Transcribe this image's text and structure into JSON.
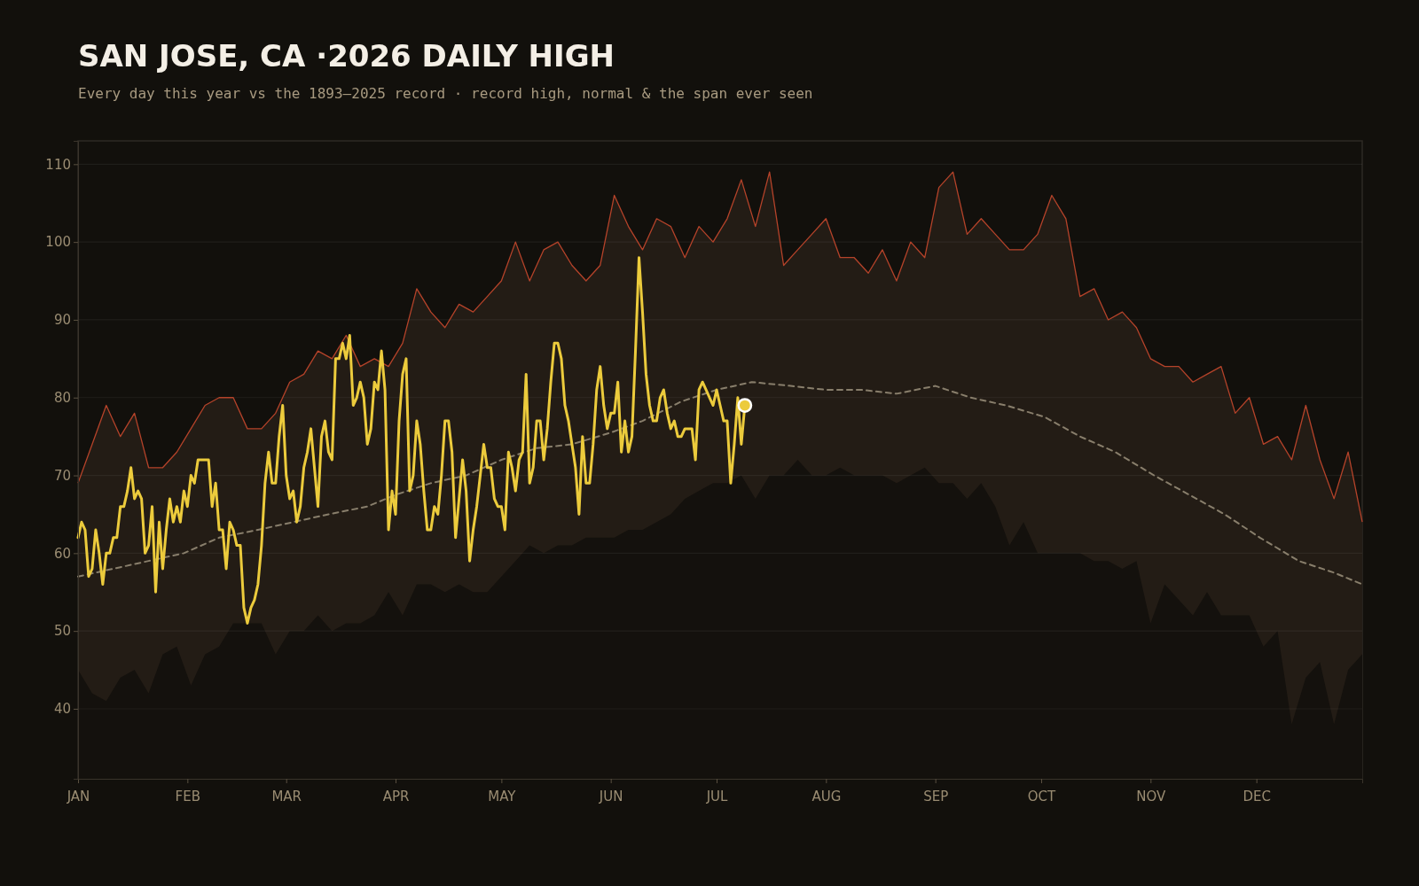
{
  "chart_data": {
    "type": "line",
    "title": "SAN JOSE, CA ·2026 DAILY HIGH",
    "subtitle": "Every day this year vs the 1893–2025 record · record high, normal & the span ever seen",
    "xlim": [
      "2026-01-01",
      "2026-12-31"
    ],
    "ylim": [
      31,
      113
    ],
    "xticks": [
      {
        "value": "2026-01-01",
        "label": "JAN"
      },
      {
        "value": "2026-02-01",
        "label": "FEB"
      },
      {
        "value": "2026-03-01",
        "label": "MAR"
      },
      {
        "value": "2026-04-01",
        "label": "APR"
      },
      {
        "value": "2026-05-01",
        "label": "MAY"
      },
      {
        "value": "2026-06-01",
        "label": "JUN"
      },
      {
        "value": "2026-07-01",
        "label": "JUL"
      },
      {
        "value": "2026-08-01",
        "label": "AUG"
      },
      {
        "value": "2026-09-01",
        "label": "SEP"
      },
      {
        "value": "2026-10-01",
        "label": "OCT"
      },
      {
        "value": "2026-11-01",
        "label": "NOV"
      },
      {
        "value": "2026-12-01",
        "label": "DEC"
      }
    ],
    "yticks": [
      40,
      50,
      60,
      70,
      80,
      90,
      100,
      110
    ],
    "grid": "y",
    "x": [
      "2026-01-01",
      "2026-01-05",
      "2026-01-09",
      "2026-01-13",
      "2026-01-17",
      "2026-01-21",
      "2026-01-25",
      "2026-01-29",
      "2026-02-02",
      "2026-02-06",
      "2026-02-10",
      "2026-02-14",
      "2026-02-18",
      "2026-02-22",
      "2026-02-26",
      "2026-03-02",
      "2026-03-06",
      "2026-03-10",
      "2026-03-14",
      "2026-03-18",
      "2026-03-22",
      "2026-03-26",
      "2026-03-30",
      "2026-04-03",
      "2026-04-07",
      "2026-04-11",
      "2026-04-15",
      "2026-04-19",
      "2026-04-23",
      "2026-04-27",
      "2026-05-01",
      "2026-05-05",
      "2026-05-09",
      "2026-05-13",
      "2026-05-17",
      "2026-05-21",
      "2026-05-25",
      "2026-05-29",
      "2026-06-02",
      "2026-06-06",
      "2026-06-10",
      "2026-06-14",
      "2026-06-18",
      "2026-06-22",
      "2026-06-26",
      "2026-06-30",
      "2026-07-04",
      "2026-07-08",
      "2026-07-12",
      "2026-07-16",
      "2026-07-20",
      "2026-07-24",
      "2026-07-28",
      "2026-08-01",
      "2026-08-05",
      "2026-08-09",
      "2026-08-13",
      "2026-08-17",
      "2026-08-21",
      "2026-08-25",
      "2026-08-29",
      "2026-09-02",
      "2026-09-06",
      "2026-09-10",
      "2026-09-14",
      "2026-09-18",
      "2026-09-22",
      "2026-09-26",
      "2026-09-30",
      "2026-10-04",
      "2026-10-08",
      "2026-10-12",
      "2026-10-16",
      "2026-10-20",
      "2026-10-24",
      "2026-10-28",
      "2026-11-01",
      "2026-11-05",
      "2026-11-09",
      "2026-11-13",
      "2026-11-17",
      "2026-11-21",
      "2026-11-25",
      "2026-11-29",
      "2026-12-03",
      "2026-12-07",
      "2026-12-11",
      "2026-12-15",
      "2026-12-19",
      "2026-12-23",
      "2026-12-27",
      "2026-12-31"
    ],
    "series": [
      {
        "type": "area",
        "color": "#b5432a",
        "values": [
          69,
          74,
          79,
          75,
          78,
          71,
          71,
          73,
          76,
          79,
          80,
          80,
          76,
          76,
          78,
          82,
          83,
          86,
          85,
          88,
          84,
          85,
          84,
          87,
          94,
          91,
          89,
          92,
          91,
          93,
          95,
          100,
          95,
          99,
          100,
          97,
          95,
          97,
          106,
          102,
          99,
          103,
          102,
          98,
          102,
          100,
          103,
          108,
          102,
          109,
          97,
          99,
          101,
          103,
          98,
          98,
          96,
          99,
          95,
          100,
          98,
          107,
          109,
          101,
          103,
          101,
          99,
          99,
          101,
          106,
          103,
          93,
          94,
          90,
          91,
          89,
          85,
          84,
          84,
          82,
          83,
          84,
          78,
          80,
          74,
          75,
          72,
          79,
          72,
          67,
          73,
          64
        ]
      },
      {
        "type": "area",
        "color": "#14110d",
        "values": [
          45,
          42,
          41,
          44,
          45,
          42,
          47,
          48,
          43,
          47,
          48,
          51,
          51,
          51,
          47,
          50,
          50,
          52,
          50,
          51,
          51,
          52,
          55,
          52,
          56,
          56,
          55,
          56,
          55,
          55,
          57,
          59,
          61,
          60,
          61,
          61,
          62,
          62,
          62,
          63,
          63,
          64,
          65,
          67,
          68,
          69,
          69,
          70,
          67,
          70,
          70,
          72,
          70,
          70,
          71,
          70,
          70,
          70,
          69,
          70,
          71,
          69,
          69,
          67,
          69,
          66,
          61,
          64,
          60,
          60,
          60,
          60,
          59,
          59,
          58,
          59,
          51,
          56,
          54,
          52,
          55,
          52,
          52,
          52,
          48,
          50,
          38,
          44,
          46,
          38,
          45,
          47
        ]
      },
      {
        "color": "#9a8f7a",
        "line_style": "dashed",
        "x": [
          "2026-01-01",
          "2026-01-11",
          "2026-01-21",
          "2026-01-31",
          "2026-02-10",
          "2026-02-21",
          "2026-03-03",
          "2026-03-13",
          "2026-03-24",
          "2026-04-01",
          "2026-04-11",
          "2026-04-21",
          "2026-05-01",
          "2026-05-11",
          "2026-05-21",
          "2026-06-01",
          "2026-06-10",
          "2026-06-21",
          "2026-07-01",
          "2026-07-11",
          "2026-07-22",
          "2026-08-01",
          "2026-08-11",
          "2026-08-21",
          "2026-09-01",
          "2026-09-11",
          "2026-09-21",
          "2026-10-02",
          "2026-10-12",
          "2026-10-22",
          "2026-11-02",
          "2026-11-12",
          "2026-11-22",
          "2026-12-02",
          "2026-12-13",
          "2026-12-23",
          "2026-12-31"
        ],
        "values": [
          57,
          58,
          59,
          60,
          62,
          63,
          64,
          65,
          66,
          67.5,
          69,
          70,
          72,
          73.5,
          74,
          75.5,
          77,
          79.5,
          81,
          82,
          81.5,
          81,
          81,
          80.5,
          81.5,
          80,
          79,
          77.5,
          75,
          73,
          70,
          67.5,
          65,
          62,
          59,
          57.5,
          56
        ]
      },
      {
        "color": "#eccb3c",
        "line_style": "solid",
        "x": [
          "2026-01-01",
          "2026-01-02",
          "2026-01-03",
          "2026-01-04",
          "2026-01-05",
          "2026-01-06",
          "2026-01-07",
          "2026-01-08",
          "2026-01-09",
          "2026-01-10",
          "2026-01-11",
          "2026-01-12",
          "2026-01-13",
          "2026-01-14",
          "2026-01-15",
          "2026-01-16",
          "2026-01-17",
          "2026-01-18",
          "2026-01-19",
          "2026-01-20",
          "2026-01-21",
          "2026-01-22",
          "2026-01-23",
          "2026-01-24",
          "2026-01-25",
          "2026-01-26",
          "2026-01-27",
          "2026-01-28",
          "2026-01-29",
          "2026-01-30",
          "2026-01-31",
          "2026-02-01",
          "2026-02-02",
          "2026-02-03",
          "2026-02-04",
          "2026-02-05",
          "2026-02-06",
          "2026-02-07",
          "2026-02-08",
          "2026-02-09",
          "2026-02-10",
          "2026-02-11",
          "2026-02-12",
          "2026-02-13",
          "2026-02-14",
          "2026-02-15",
          "2026-02-16",
          "2026-02-17",
          "2026-02-18",
          "2026-02-19",
          "2026-02-20",
          "2026-02-21",
          "2026-02-22",
          "2026-02-23",
          "2026-02-24",
          "2026-02-25",
          "2026-02-26",
          "2026-02-27",
          "2026-02-28",
          "2026-03-01",
          "2026-03-02",
          "2026-03-03",
          "2026-03-04",
          "2026-03-05",
          "2026-03-06",
          "2026-03-07",
          "2026-03-08",
          "2026-03-09",
          "2026-03-10",
          "2026-03-11",
          "2026-03-12",
          "2026-03-13",
          "2026-03-14",
          "2026-03-15",
          "2026-03-16",
          "2026-03-17",
          "2026-03-18",
          "2026-03-19",
          "2026-03-20",
          "2026-03-21",
          "2026-03-22",
          "2026-03-23",
          "2026-03-24",
          "2026-03-25",
          "2026-03-26",
          "2026-03-27",
          "2026-03-28",
          "2026-03-29",
          "2026-03-30",
          "2026-03-31",
          "2026-04-01",
          "2026-04-02",
          "2026-04-03",
          "2026-04-04",
          "2026-04-05",
          "2026-04-06",
          "2026-04-07",
          "2026-04-08",
          "2026-04-09",
          "2026-04-10",
          "2026-04-11",
          "2026-04-12",
          "2026-04-13",
          "2026-04-14",
          "2026-04-15",
          "2026-04-16",
          "2026-04-17",
          "2026-04-18",
          "2026-04-19",
          "2026-04-20",
          "2026-04-21",
          "2026-04-22",
          "2026-04-23",
          "2026-04-24",
          "2026-04-25",
          "2026-04-26",
          "2026-04-27",
          "2026-04-28",
          "2026-04-29",
          "2026-04-30",
          "2026-05-01",
          "2026-05-02",
          "2026-05-03",
          "2026-05-04",
          "2026-05-05",
          "2026-05-06",
          "2026-05-07",
          "2026-05-08",
          "2026-05-09",
          "2026-05-10",
          "2026-05-11",
          "2026-05-12",
          "2026-05-13",
          "2026-05-14",
          "2026-05-15",
          "2026-05-16",
          "2026-05-17",
          "2026-05-18",
          "2026-05-19",
          "2026-05-20",
          "2026-05-21",
          "2026-05-22",
          "2026-05-23",
          "2026-05-24",
          "2026-05-25",
          "2026-05-26",
          "2026-05-27",
          "2026-05-28",
          "2026-05-29",
          "2026-05-30",
          "2026-05-31",
          "2026-06-01",
          "2026-06-02",
          "2026-06-03",
          "2026-06-04",
          "2026-06-05",
          "2026-06-06",
          "2026-06-07",
          "2026-06-08",
          "2026-06-09",
          "2026-06-10",
          "2026-06-11",
          "2026-06-12",
          "2026-06-13",
          "2026-06-14",
          "2026-06-15",
          "2026-06-16",
          "2026-06-17",
          "2026-06-18",
          "2026-06-19",
          "2026-06-20",
          "2026-06-21",
          "2026-06-22",
          "2026-06-23",
          "2026-06-24",
          "2026-06-25",
          "2026-06-26",
          "2026-06-27",
          "2026-06-28",
          "2026-06-29",
          "2026-06-30",
          "2026-07-01",
          "2026-07-02",
          "2026-07-03",
          "2026-07-04",
          "2026-07-05",
          "2026-07-06",
          "2026-07-07",
          "2026-07-08",
          "2026-07-09"
        ],
        "values": [
          62,
          64,
          63,
          57,
          58,
          63,
          60,
          56,
          60,
          60,
          62,
          62,
          66,
          66,
          68,
          71,
          67,
          68,
          67,
          60,
          61,
          66,
          55,
          64,
          58,
          63,
          67,
          64,
          66,
          64,
          68,
          66,
          70,
          69,
          72,
          72,
          72,
          72,
          66,
          69,
          63,
          63,
          58,
          64,
          63,
          61,
          61,
          53,
          51,
          53,
          54,
          56,
          61,
          69,
          73,
          69,
          69,
          75,
          79,
          70,
          67,
          68,
          64,
          66,
          71,
          73,
          76,
          71,
          66,
          75,
          77,
          73,
          72,
          85,
          85,
          87,
          85,
          88,
          79,
          80,
          82,
          80,
          74,
          76,
          82,
          81,
          86,
          81,
          63,
          68,
          65,
          77,
          83,
          85,
          68,
          70,
          77,
          74,
          68,
          63,
          63,
          66,
          65,
          70,
          77,
          77,
          73,
          62,
          67,
          72,
          68,
          59,
          63,
          66,
          70,
          74,
          71,
          71,
          67,
          66,
          66,
          63,
          73,
          71,
          68,
          72,
          73,
          83,
          69,
          71,
          77,
          77,
          72,
          76,
          82,
          87,
          87,
          85,
          79,
          77,
          74,
          71,
          65,
          75,
          69,
          69,
          74,
          81,
          84,
          79,
          76,
          78,
          78,
          82,
          73,
          77,
          73,
          75,
          86,
          98,
          91,
          83,
          79,
          77,
          77,
          80,
          81,
          78,
          76,
          77,
          75,
          75,
          76,
          76,
          76,
          72,
          81,
          82,
          81,
          80,
          79,
          81,
          79,
          77,
          77,
          69,
          74,
          80,
          74,
          79
        ]
      },
      {
        "type": "scatter",
        "color": "#eccb3c",
        "marker": "circle",
        "x": [
          "2026-07-09"
        ],
        "values": [
          79
        ]
      }
    ]
  }
}
